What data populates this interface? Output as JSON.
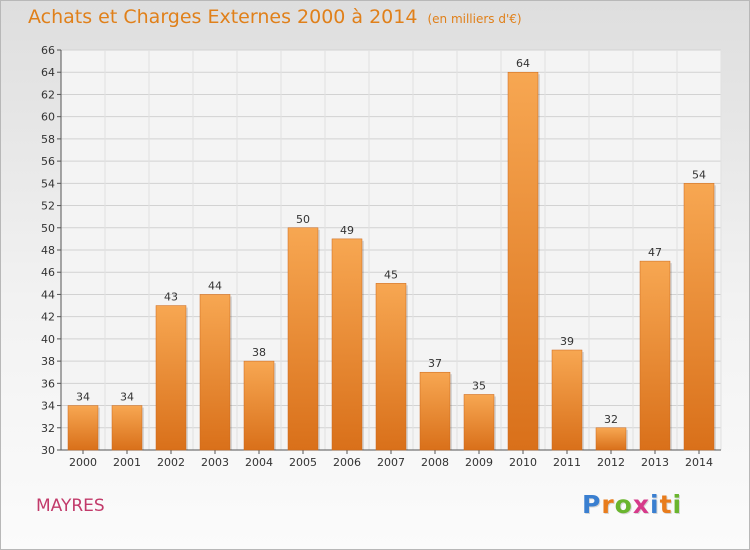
{
  "chart_data": {
    "type": "bar",
    "title": "Achats et Charges Externes 2000 à 2014",
    "subtitle": "(en milliers d'€)",
    "categories": [
      "2000",
      "2001",
      "2002",
      "2003",
      "2004",
      "2005",
      "2006",
      "2007",
      "2008",
      "2009",
      "2010",
      "2011",
      "2012",
      "2013",
      "2014"
    ],
    "values": [
      34,
      34,
      43,
      44,
      38,
      50,
      49,
      45,
      37,
      35,
      64,
      39,
      32,
      47,
      54
    ],
    "ylim": [
      30,
      66
    ],
    "yticks": [
      "30",
      "32",
      "34",
      "36",
      "38",
      "40",
      "42",
      "44",
      "46",
      "48",
      "50",
      "52",
      "54",
      "56",
      "58",
      "60",
      "62",
      "64",
      "66"
    ],
    "grid": true,
    "bar_color": "#f0902a",
    "legend": "none"
  },
  "footer": {
    "place": "MAYRES",
    "logo_letters": [
      "P",
      "r",
      "o",
      "x",
      "i",
      "t",
      "i"
    ],
    "logo_colors": [
      "#3a7fd0",
      "#e87c1c",
      "#6ab52e",
      "#d63a8a",
      "#3a7fd0",
      "#e87c1c",
      "#6ab52e"
    ]
  }
}
